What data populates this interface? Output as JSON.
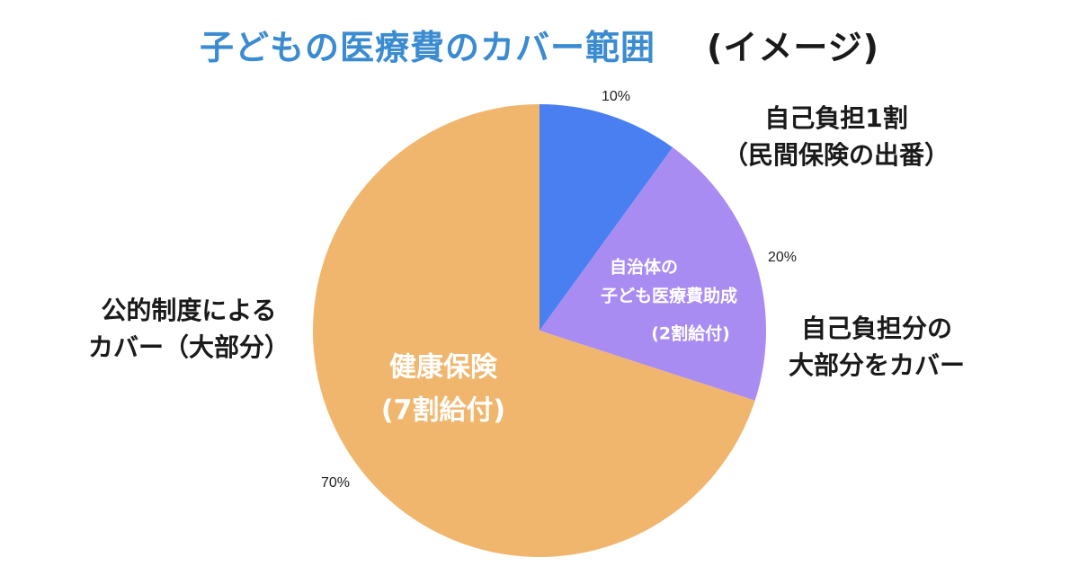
{
  "title": {
    "main": "子どもの医療費のカバー範囲",
    "sub": "(イメージ)"
  },
  "chart_data": {
    "type": "pie",
    "slices": [
      {
        "value": 10,
        "percent_label": "10%",
        "color": "#4a7ff2",
        "inner_label": [],
        "outer_label": [
          "自己負担1割",
          "（民間保険の出番）"
        ]
      },
      {
        "value": 20,
        "percent_label": "20%",
        "color": "#a98cf1",
        "inner_label": [
          "自治体の",
          "子ども医療費助成",
          "(2割給付)"
        ],
        "outer_label": [
          "自己負担分の",
          "大部分をカバー"
        ]
      },
      {
        "value": 70,
        "percent_label": "70%",
        "color": "#f0b66e",
        "inner_label": [
          "健康保険",
          "(7割給付)"
        ],
        "outer_label": [
          "公的制度による",
          "カバー（大部分）"
        ]
      }
    ]
  }
}
